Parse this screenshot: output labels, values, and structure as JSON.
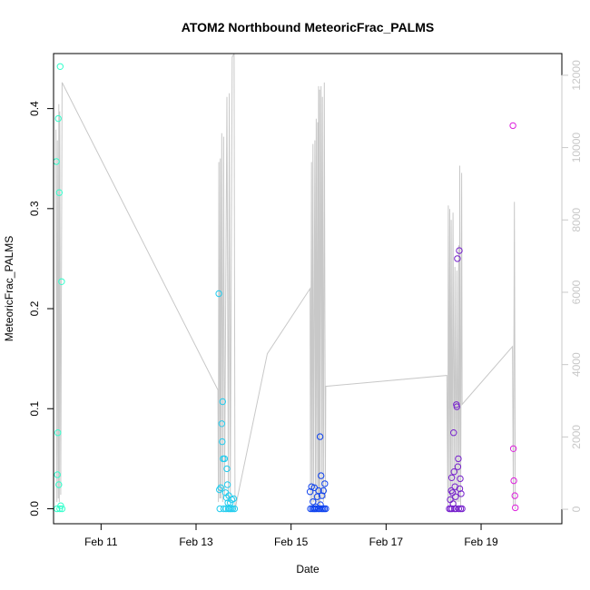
{
  "chart_data": {
    "type": "scatter",
    "title": "ATOM2 Northbound MeteoricFrac_PALMS",
    "xlabel": "Date",
    "ylabel": "MeteoricFrac_PALMS",
    "x_unit": "days in February (fractional day of month)",
    "xlim": [
      10.0,
      20.7
    ],
    "ylim": [
      -0.015,
      0.455
    ],
    "x_ticks": [
      {
        "value": 11,
        "label": "Feb 11"
      },
      {
        "value": 13,
        "label": "Feb 13"
      },
      {
        "value": 15,
        "label": "Feb 15"
      },
      {
        "value": 17,
        "label": "Feb 17"
      },
      {
        "value": 19,
        "label": "Feb 19"
      }
    ],
    "y_ticks": [
      {
        "value": 0.0,
        "label": "0.0"
      },
      {
        "value": 0.1,
        "label": "0.1"
      },
      {
        "value": 0.2,
        "label": "0.2"
      },
      {
        "value": 0.3,
        "label": "0.3"
      },
      {
        "value": 0.4,
        "label": "0.4"
      }
    ],
    "secondary_axis": {
      "ylim": [
        -400,
        12600
      ],
      "ticks": [
        {
          "value": 0,
          "label": "0"
        },
        {
          "value": 2000,
          "label": "2000"
        },
        {
          "value": 4000,
          "label": "4000"
        },
        {
          "value": 6000,
          "label": "6000"
        },
        {
          "value": 8000,
          "label": "8000"
        },
        {
          "value": 10000,
          "label": "10000"
        },
        {
          "value": 12000,
          "label": "12000"
        }
      ],
      "color": "#c8c8c8"
    },
    "grid": false,
    "series": [
      {
        "color": "#33ffcc",
        "marker": "open-circle",
        "points": [
          [
            10.06,
            0.347
          ],
          [
            10.07,
            0.0
          ],
          [
            10.08,
            0.034
          ],
          [
            10.09,
            0.076
          ],
          [
            10.1,
            0.39
          ],
          [
            10.11,
            0.024
          ],
          [
            10.12,
            0.316
          ],
          [
            10.13,
            0.0
          ],
          [
            10.14,
            0.442
          ],
          [
            10.15,
            0.003
          ],
          [
            10.17,
            0.227
          ],
          [
            10.18,
            0.0
          ]
        ]
      },
      {
        "color": "#22ccee",
        "marker": "open-circle",
        "points": [
          [
            13.48,
            0.215
          ],
          [
            13.49,
            0.019
          ],
          [
            13.5,
            0.0
          ],
          [
            13.52,
            0.021
          ],
          [
            13.54,
            0.085
          ],
          [
            13.55,
            0.067
          ],
          [
            13.56,
            0.107
          ],
          [
            13.57,
            0.05
          ],
          [
            13.58,
            0.0
          ],
          [
            13.6,
            0.05
          ],
          [
            13.62,
            0.016
          ],
          [
            13.63,
            0.0
          ],
          [
            13.64,
            0.011
          ],
          [
            13.65,
            0.04
          ],
          [
            13.66,
            0.024
          ],
          [
            13.67,
            0.006
          ],
          [
            13.68,
            0.0
          ],
          [
            13.69,
            0.013
          ],
          [
            13.71,
            0.0
          ],
          [
            13.72,
            0.006
          ],
          [
            13.74,
            0.0
          ],
          [
            13.75,
            0.009
          ],
          [
            13.77,
            0.0
          ],
          [
            13.79,
            0.01
          ],
          [
            13.81,
            0.0
          ]
        ]
      },
      {
        "color": "#1144ee",
        "marker": "open-circle",
        "points": [
          [
            15.4,
            0.017
          ],
          [
            15.41,
            0.0
          ],
          [
            15.43,
            0.022
          ],
          [
            15.45,
            0.0
          ],
          [
            15.46,
            0.007
          ],
          [
            15.48,
            0.0
          ],
          [
            15.49,
            0.021
          ],
          [
            15.5,
            0.0
          ],
          [
            15.52,
            0.002
          ],
          [
            15.53,
            0.0
          ],
          [
            15.55,
            0.012
          ],
          [
            15.57,
            0.0
          ],
          [
            15.58,
            0.018
          ],
          [
            15.6,
            0.0
          ],
          [
            15.61,
            0.072
          ],
          [
            15.62,
            0.004
          ],
          [
            15.63,
            0.033
          ],
          [
            15.64,
            0.0
          ],
          [
            15.65,
            0.013
          ],
          [
            15.67,
            0.0
          ],
          [
            15.68,
            0.018
          ],
          [
            15.7,
            0.0
          ],
          [
            15.71,
            0.025
          ],
          [
            15.73,
            0.0
          ]
        ]
      },
      {
        "color": "#7722cc",
        "marker": "open-circle",
        "points": [
          [
            18.33,
            0.0
          ],
          [
            18.35,
            0.009
          ],
          [
            18.36,
            0.0
          ],
          [
            18.37,
            0.018
          ],
          [
            18.38,
            0.031
          ],
          [
            18.39,
            0.0
          ],
          [
            18.4,
            0.016
          ],
          [
            18.41,
            0.005
          ],
          [
            18.42,
            0.076
          ],
          [
            18.43,
            0.037
          ],
          [
            18.44,
            0.0
          ],
          [
            18.45,
            0.022
          ],
          [
            18.46,
            0.012
          ],
          [
            18.47,
            0.0
          ],
          [
            18.48,
            0.104
          ],
          [
            18.49,
            0.102
          ],
          [
            18.5,
            0.25
          ],
          [
            18.51,
            0.042
          ],
          [
            18.52,
            0.05
          ],
          [
            18.53,
            0.0
          ],
          [
            18.54,
            0.258
          ],
          [
            18.55,
            0.02
          ],
          [
            18.56,
            0.03
          ],
          [
            18.57,
            0.0
          ],
          [
            18.58,
            0.015
          ],
          [
            18.6,
            0.0
          ]
        ]
      },
      {
        "color": "#dd22dd",
        "marker": "open-circle",
        "points": [
          [
            19.67,
            0.383
          ],
          [
            19.68,
            0.06
          ],
          [
            19.69,
            0.028
          ],
          [
            19.71,
            0.013
          ],
          [
            19.72,
            0.001
          ]
        ]
      }
    ],
    "secondary_series": {
      "color": "#c8c8c8",
      "style": "line",
      "points": [
        [
          10.05,
          10500
        ],
        [
          10.07,
          200
        ],
        [
          10.08,
          10200
        ],
        [
          10.1,
          300
        ],
        [
          10.11,
          11200
        ],
        [
          10.12,
          200
        ],
        [
          10.13,
          11000
        ],
        [
          10.15,
          400
        ],
        [
          10.18,
          11800
        ],
        [
          13.46,
          3300
        ],
        [
          13.47,
          200
        ],
        [
          13.48,
          9600
        ],
        [
          13.5,
          300
        ],
        [
          13.51,
          9700
        ],
        [
          13.52,
          300
        ],
        [
          13.54,
          10400
        ],
        [
          13.56,
          200
        ],
        [
          13.58,
          10300
        ],
        [
          13.6,
          400
        ],
        [
          13.65,
          11400
        ],
        [
          13.68,
          200
        ],
        [
          13.7,
          11500
        ],
        [
          13.72,
          300
        ],
        [
          13.76,
          12500
        ],
        [
          13.8,
          12600
        ],
        [
          13.82,
          0
        ],
        [
          14.5,
          4300
        ],
        [
          15.4,
          6100
        ],
        [
          15.41,
          200
        ],
        [
          15.43,
          9600
        ],
        [
          15.44,
          100
        ],
        [
          15.46,
          10100
        ],
        [
          15.47,
          200
        ],
        [
          15.5,
          10200
        ],
        [
          15.51,
          100
        ],
        [
          15.53,
          10800
        ],
        [
          15.54,
          200
        ],
        [
          15.56,
          10700
        ],
        [
          15.57,
          200
        ],
        [
          15.58,
          11700
        ],
        [
          15.59,
          100
        ],
        [
          15.6,
          11600
        ],
        [
          15.61,
          100
        ],
        [
          15.63,
          11700
        ],
        [
          15.65,
          300
        ],
        [
          15.66,
          11400
        ],
        [
          15.68,
          200
        ],
        [
          15.7,
          11800
        ],
        [
          15.72,
          300
        ],
        [
          15.73,
          3400
        ],
        [
          18.28,
          3700
        ],
        [
          18.3,
          100
        ],
        [
          18.31,
          8400
        ],
        [
          18.33,
          200
        ],
        [
          18.34,
          8300
        ],
        [
          18.36,
          100
        ],
        [
          18.37,
          8000
        ],
        [
          18.39,
          200
        ],
        [
          18.41,
          8200
        ],
        [
          18.43,
          200
        ],
        [
          18.45,
          6700
        ],
        [
          18.47,
          100
        ],
        [
          18.49,
          6600
        ],
        [
          18.51,
          200
        ],
        [
          18.53,
          7300
        ],
        [
          18.54,
          200
        ],
        [
          18.55,
          9500
        ],
        [
          18.57,
          100
        ],
        [
          18.59,
          9300
        ],
        [
          18.6,
          2900
        ],
        [
          19.66,
          4500
        ],
        [
          19.68,
          100
        ],
        [
          19.7,
          8500
        ],
        [
          19.72,
          0
        ]
      ]
    }
  }
}
